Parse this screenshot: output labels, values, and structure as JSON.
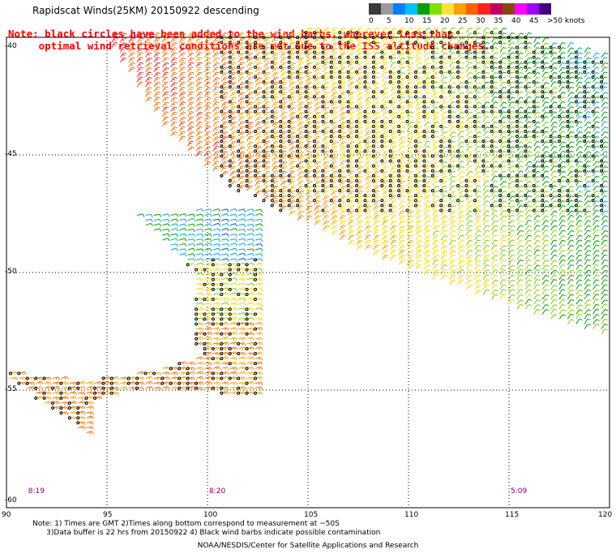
{
  "title": "Rapidscat Winds(25KM) 20150922 descending",
  "note": {
    "line1": "Note: black circles have been added to the wind barbs, wherever less than",
    "line2": "optimal wind retrieval conditions are met due to the ISS altitude changes."
  },
  "colorbar": {
    "labels": [
      "0",
      "5",
      "10",
      "15",
      "20",
      "25",
      "30",
      "35",
      "40",
      "45",
      ">50 knots"
    ],
    "colors": [
      "#3a3a3a",
      "#9a9a9a",
      "#0080ff",
      "#00c0ff",
      "#00a000",
      "#80e000",
      "#ffe040",
      "#ffa000",
      "#ff6000",
      "#ff2020",
      "#c00060",
      "#8b4513",
      "#ff00ff",
      "#a000ff",
      "#400080"
    ]
  },
  "footer": {
    "line1": "Note: 1) Times are GMT 2)Times along bottom correspond to measurement at ~50S",
    "line2": "3)Data buffer is 22 hrs from 20150922 4) Black wind barbs indicate possible contamination",
    "credit": "NOAA/NESDIS/Center for Satellite Applications and Research"
  },
  "chart_data": {
    "type": "scatter",
    "title": "Rapidscat Winds(25KM) 20150922 descending",
    "x_ticks": [
      "90",
      "95",
      "100",
      "105",
      "110",
      "115",
      "120"
    ],
    "y_ticks": [
      "-40",
      "-45",
      "-50",
      "-55",
      "-60"
    ],
    "xlim": [
      90,
      120
    ],
    "ylim": [
      -60,
      -40
    ],
    "grid": true,
    "time_labels": [
      {
        "lon": 91.2,
        "text": "8:19"
      },
      {
        "lon": 100.2,
        "text": "8:20"
      },
      {
        "lon": 115.2,
        "text": "5:09"
      }
    ],
    "swaths": [
      {
        "name": "swath-east",
        "polygon": [
          [
            95.2,
            -40.0
          ],
          [
            113.8,
            -39.6
          ],
          [
            120,
            -40.8
          ],
          [
            120,
            -52.8
          ],
          [
            114,
            -51.2
          ],
          [
            108,
            -49.3
          ],
          [
            101,
            -46.3
          ],
          [
            98,
            -44.2
          ],
          [
            95.2,
            -40.5
          ]
        ],
        "speed_range_knots": [
          10,
          35
        ]
      },
      {
        "name": "swath-west",
        "polygon": [
          [
            96.2,
            -47.5
          ],
          [
            102.8,
            -47.2
          ],
          [
            102.8,
            -55.2
          ],
          [
            96,
            -55.0
          ],
          [
            94,
            -55.5
          ],
          [
            94,
            -56.9
          ],
          [
            90,
            -54.5
          ],
          [
            90,
            -54.2
          ],
          [
            94,
            -54.6
          ],
          [
            97.6,
            -54.1
          ],
          [
            99.5,
            -53.6
          ],
          [
            99.1,
            -49.8
          ]
        ],
        "speed_range_knots": [
          10,
          30
        ]
      }
    ]
  }
}
